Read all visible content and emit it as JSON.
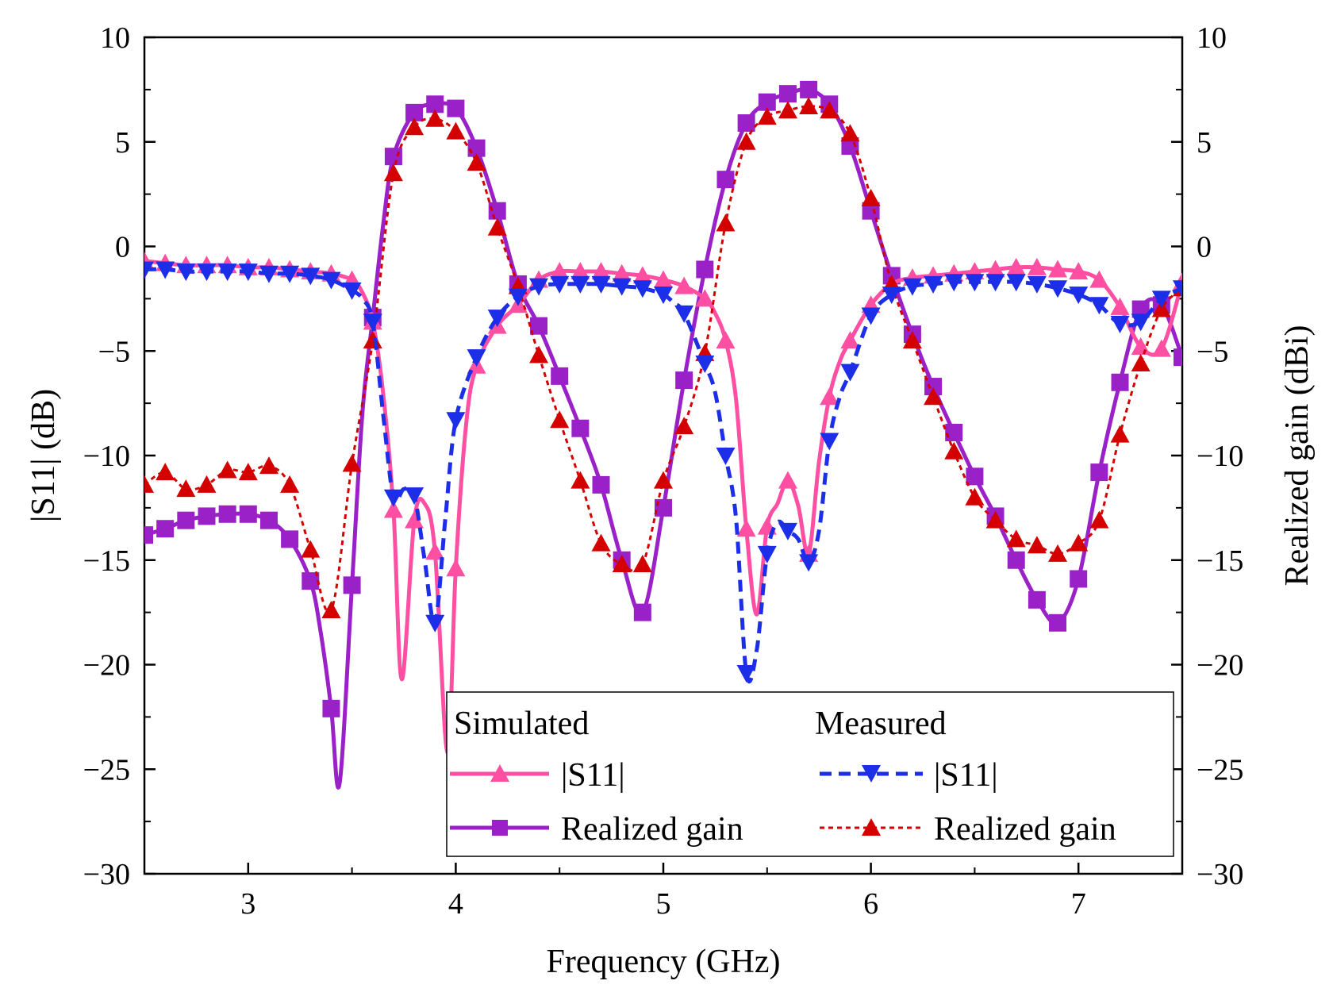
{
  "chart_data": {
    "type": "line",
    "xlabel": "Frequency (GHz)",
    "ylabel_left": "|S11| (dB)",
    "ylabel_right": "Realized gain (dBi)",
    "xlim": [
      2.5,
      7.5
    ],
    "ylim_left": [
      -30,
      10
    ],
    "ylim_right": [
      -30,
      10
    ],
    "x_ticks": [
      3,
      4,
      5,
      6,
      7
    ],
    "y_ticks_left": [
      10,
      5,
      0,
      -5,
      -10,
      -15,
      -20,
      -25,
      -30
    ],
    "y_ticks_right": [
      10,
      5,
      0,
      -5,
      -10,
      -15,
      -20,
      -25,
      -30
    ],
    "tick_labels": {
      "x": [
        "3",
        "4",
        "5",
        "6",
        "7"
      ],
      "y_left": [
        "10",
        "5",
        "0",
        "−5",
        "−10",
        "−15",
        "−20",
        "−25",
        "−30"
      ],
      "y_right": [
        "10",
        "5",
        "0",
        "−5",
        "−10",
        "−15",
        "−20",
        "−25",
        "−30"
      ]
    },
    "legend": {
      "placement": "bottom-right",
      "group_simulated": "Simulated",
      "group_measured": "Measured",
      "sim_s11": "|S11|",
      "sim_gain": "Realized gain",
      "meas_s11": "|S11|",
      "meas_gain": "Realized gain"
    },
    "series": [
      {
        "name": "Simulated |S11|",
        "axis": "left",
        "color": "#ff4fa3",
        "line": "solid",
        "marker": "triangle-up",
        "x": [
          2.5,
          2.6,
          2.7,
          2.8,
          2.9,
          3.0,
          3.1,
          3.2,
          3.3,
          3.4,
          3.5,
          3.55,
          3.6,
          3.65,
          3.7,
          3.74,
          3.8,
          3.85,
          3.9,
          3.96,
          4.0,
          4.05,
          4.1,
          4.2,
          4.3,
          4.4,
          4.5,
          4.6,
          4.7,
          4.8,
          4.9,
          5.0,
          5.1,
          5.2,
          5.25,
          5.3,
          5.35,
          5.4,
          5.45,
          5.5,
          5.55,
          5.6,
          5.65,
          5.7,
          5.75,
          5.8,
          5.85,
          5.9,
          6.0,
          6.1,
          6.2,
          6.3,
          6.4,
          6.5,
          6.6,
          6.7,
          6.8,
          6.9,
          7.0,
          7.1,
          7.2,
          7.3,
          7.4,
          7.5
        ],
        "y": [
          -0.7,
          -0.8,
          -0.9,
          -0.9,
          -0.9,
          -1.0,
          -1.0,
          -1.1,
          -1.2,
          -1.3,
          -1.6,
          -2.2,
          -3.6,
          -7.0,
          -12.6,
          -20.7,
          -13.1,
          -12.3,
          -14.6,
          -24.2,
          -15.4,
          -8.5,
          -5.7,
          -3.8,
          -2.8,
          -1.6,
          -1.2,
          -1.2,
          -1.2,
          -1.3,
          -1.4,
          -1.6,
          -1.9,
          -2.5,
          -3.2,
          -4.5,
          -7.3,
          -13.5,
          -17.6,
          -13.4,
          -12.3,
          -11.2,
          -12.4,
          -14.7,
          -10.3,
          -7.2,
          -5.5,
          -4.5,
          -2.8,
          -1.8,
          -1.5,
          -1.4,
          -1.3,
          -1.2,
          -1.1,
          -1.0,
          -1.0,
          -1.1,
          -1.2,
          -1.6,
          -2.9,
          -4.8,
          -4.9,
          -1.7
        ],
        "markers_x": [
          2.5,
          2.6,
          2.7,
          2.8,
          2.9,
          3.0,
          3.1,
          3.2,
          3.3,
          3.4,
          3.5,
          3.6,
          3.7,
          3.8,
          3.9,
          4.0,
          4.1,
          4.2,
          4.3,
          4.4,
          4.5,
          4.6,
          4.7,
          4.8,
          4.9,
          5.0,
          5.1,
          5.2,
          5.3,
          5.4,
          5.5,
          5.6,
          5.7,
          5.8,
          5.9,
          6.0,
          6.1,
          6.2,
          6.3,
          6.4,
          6.5,
          6.6,
          6.7,
          6.8,
          6.9,
          7.0,
          7.1,
          7.2,
          7.3,
          7.4,
          7.5
        ]
      },
      {
        "name": "Measured |S11|",
        "axis": "left",
        "color": "#1c2ee8",
        "line": "dashed",
        "marker": "triangle-down",
        "x": [
          2.5,
          2.6,
          2.7,
          2.8,
          2.9,
          3.0,
          3.1,
          3.2,
          3.3,
          3.4,
          3.5,
          3.55,
          3.6,
          3.65,
          3.7,
          3.75,
          3.8,
          3.85,
          3.9,
          3.95,
          4.0,
          4.1,
          4.2,
          4.3,
          4.4,
          4.5,
          4.6,
          4.7,
          4.8,
          4.9,
          5.0,
          5.05,
          5.1,
          5.2,
          5.25,
          5.3,
          5.35,
          5.4,
          5.45,
          5.5,
          5.55,
          5.6,
          5.65,
          5.7,
          5.75,
          5.8,
          5.85,
          5.9,
          6.0,
          6.1,
          6.2,
          6.3,
          6.4,
          6.5,
          6.6,
          6.7,
          6.8,
          6.9,
          7.0,
          7.1,
          7.2,
          7.3,
          7.4,
          7.5
        ],
        "y": [
          -1.1,
          -1.1,
          -1.2,
          -1.2,
          -1.2,
          -1.2,
          -1.3,
          -1.3,
          -1.4,
          -1.6,
          -2.1,
          -2.5,
          -3.6,
          -8.0,
          -12.0,
          -11.6,
          -11.9,
          -15.0,
          -18.0,
          -13.0,
          -8.3,
          -5.3,
          -3.4,
          -2.4,
          -1.9,
          -1.8,
          -1.8,
          -1.8,
          -1.9,
          -2.0,
          -2.3,
          -2.7,
          -3.2,
          -5.6,
          -7.0,
          -10.0,
          -13.0,
          -20.4,
          -19.3,
          -14.7,
          -13.2,
          -13.6,
          -14.0,
          -15.1,
          -13.6,
          -9.3,
          -7.2,
          -6.0,
          -3.3,
          -2.3,
          -1.9,
          -1.8,
          -1.7,
          -1.7,
          -1.7,
          -1.7,
          -1.8,
          -2.0,
          -2.3,
          -2.8,
          -3.7,
          -3.6,
          -2.5,
          -2.0
        ],
        "markers_x": [
          2.5,
          2.6,
          2.7,
          2.8,
          2.9,
          3.0,
          3.1,
          3.2,
          3.3,
          3.4,
          3.5,
          3.6,
          3.7,
          3.8,
          3.9,
          4.0,
          4.1,
          4.2,
          4.3,
          4.4,
          4.5,
          4.6,
          4.7,
          4.8,
          4.9,
          5.0,
          5.1,
          5.2,
          5.3,
          5.4,
          5.5,
          5.6,
          5.7,
          5.8,
          5.9,
          6.0,
          6.1,
          6.2,
          6.3,
          6.4,
          6.5,
          6.6,
          6.7,
          6.8,
          6.9,
          7.0,
          7.1,
          7.2,
          7.3,
          7.4,
          7.5
        ]
      },
      {
        "name": "Simulated Realized gain",
        "axis": "right",
        "color": "#9a20c8",
        "line": "solid",
        "marker": "square",
        "x": [
          2.5,
          2.6,
          2.7,
          2.8,
          2.9,
          3.0,
          3.1,
          3.2,
          3.3,
          3.35,
          3.4,
          3.44,
          3.5,
          3.55,
          3.6,
          3.65,
          3.7,
          3.8,
          3.9,
          4.0,
          4.1,
          4.2,
          4.3,
          4.4,
          4.5,
          4.6,
          4.7,
          4.8,
          4.9,
          5.0,
          5.1,
          5.2,
          5.3,
          5.4,
          5.5,
          5.6,
          5.7,
          5.8,
          5.9,
          6.0,
          6.1,
          6.2,
          6.3,
          6.4,
          6.5,
          6.6,
          6.7,
          6.8,
          6.9,
          7.0,
          7.1,
          7.2,
          7.3,
          7.4,
          7.5
        ],
        "y": [
          -13.8,
          -13.5,
          -13.1,
          -12.9,
          -12.8,
          -12.8,
          -13.1,
          -14.0,
          -16.0,
          -18.5,
          -22.1,
          -25.7,
          -16.2,
          -8.0,
          -3.4,
          1.0,
          4.3,
          6.4,
          6.8,
          6.6,
          4.7,
          1.7,
          -1.8,
          -3.8,
          -6.2,
          -8.7,
          -11.4,
          -15.0,
          -17.5,
          -12.5,
          -6.4,
          -1.1,
          3.2,
          5.9,
          6.9,
          7.3,
          7.5,
          6.8,
          4.8,
          1.7,
          -1.4,
          -4.2,
          -6.7,
          -8.9,
          -11.0,
          -12.9,
          -15.0,
          -16.9,
          -18.0,
          -15.9,
          -10.8,
          -6.5,
          -3.0,
          -2.8,
          -5.3
        ],
        "markers_x": [
          2.5,
          2.6,
          2.7,
          2.8,
          2.9,
          3.0,
          3.1,
          3.2,
          3.3,
          3.4,
          3.5,
          3.6,
          3.7,
          3.8,
          3.9,
          4.0,
          4.1,
          4.2,
          4.3,
          4.4,
          4.5,
          4.6,
          4.7,
          4.8,
          4.9,
          5.0,
          5.1,
          5.2,
          5.3,
          5.4,
          5.5,
          5.6,
          5.7,
          5.8,
          5.9,
          6.0,
          6.1,
          6.2,
          6.3,
          6.4,
          6.5,
          6.6,
          6.7,
          6.8,
          6.9,
          7.0,
          7.1,
          7.2,
          7.3,
          7.4,
          7.5
        ]
      },
      {
        "name": "Measured Realized gain",
        "axis": "right",
        "color": "#d40000",
        "line": "dotted",
        "marker": "triangle-up",
        "x": [
          2.5,
          2.6,
          2.7,
          2.8,
          2.9,
          3.0,
          3.1,
          3.2,
          3.3,
          3.4,
          3.5,
          3.6,
          3.7,
          3.8,
          3.9,
          4.0,
          4.1,
          4.2,
          4.3,
          4.4,
          4.5,
          4.6,
          4.7,
          4.8,
          4.9,
          5.0,
          5.1,
          5.2,
          5.3,
          5.4,
          5.5,
          5.6,
          5.7,
          5.8,
          5.9,
          6.0,
          6.1,
          6.2,
          6.3,
          6.4,
          6.5,
          6.6,
          6.7,
          6.8,
          6.9,
          7.0,
          7.1,
          7.2,
          7.3,
          7.4,
          7.5
        ],
        "y": [
          -11.4,
          -10.8,
          -11.6,
          -11.4,
          -10.7,
          -10.8,
          -10.5,
          -11.4,
          -14.5,
          -17.4,
          -10.4,
          -4.5,
          3.5,
          5.7,
          6.1,
          5.5,
          4.0,
          0.9,
          -1.9,
          -5.2,
          -8.3,
          -11.2,
          -14.2,
          -15.2,
          -15.2,
          -11.2,
          -8.6,
          -5.1,
          1.1,
          5.0,
          6.2,
          6.5,
          6.7,
          6.5,
          5.4,
          2.3,
          -1.8,
          -4.5,
          -7.2,
          -9.8,
          -12.0,
          -13.1,
          -14.0,
          -14.3,
          -14.7,
          -14.2,
          -13.1,
          -9.0,
          -5.6,
          -3.0,
          -2.0
        ]
      }
    ]
  }
}
